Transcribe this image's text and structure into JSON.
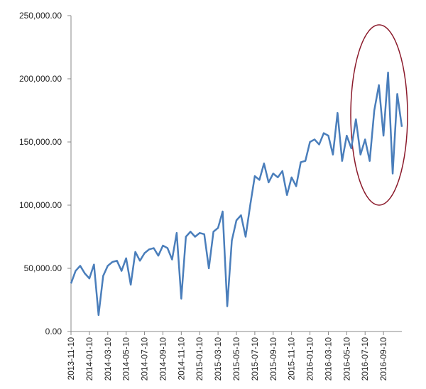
{
  "chart_data": {
    "type": "line",
    "categories": [
      "2013-11-10",
      null,
      null,
      null,
      "2014-01-10",
      null,
      null,
      null,
      "2014-03-10",
      null,
      null,
      null,
      "2014-05-10",
      null,
      null,
      null,
      "2014-07-10",
      null,
      null,
      null,
      "2014-09-10",
      null,
      null,
      null,
      "2014-11-10",
      null,
      null,
      null,
      "2015-01-10",
      null,
      null,
      null,
      "2015-03-10",
      null,
      null,
      null,
      "2015-05-10",
      null,
      null,
      null,
      "2015-07-10",
      null,
      null,
      null,
      "2015-09-10",
      null,
      null,
      null,
      "2015-11-10",
      null,
      null,
      null,
      "2016-01-10",
      null,
      null,
      null,
      "2016-03-10",
      null,
      null,
      null,
      "2016-05-10",
      null,
      null,
      null,
      "2016-07-10",
      null,
      null,
      null,
      "2016-09-10",
      null,
      null,
      null,
      null
    ],
    "series": [
      {
        "color": "#4a7ebb",
        "values": [
          38000,
          48000,
          52000,
          46000,
          42000,
          53000,
          13000,
          44000,
          52000,
          55000,
          56000,
          48000,
          58000,
          37000,
          63000,
          56000,
          62000,
          65000,
          66000,
          60000,
          68000,
          66000,
          57000,
          78000,
          26000,
          75000,
          79000,
          75000,
          78000,
          77000,
          50000,
          79000,
          82000,
          95000,
          20000,
          72000,
          88000,
          92000,
          75000,
          100000,
          123000,
          120000,
          133000,
          118000,
          125000,
          122000,
          127000,
          108000,
          122000,
          115000,
          134000,
          135000,
          150000,
          152000,
          148000,
          157000,
          155000,
          140000,
          173000,
          135000,
          155000,
          145000,
          168000,
          140000,
          152000,
          135000,
          175000,
          195000,
          155000,
          205000,
          125000,
          188000,
          162000
        ]
      }
    ],
    "ylim": [
      0,
      250000
    ],
    "yticks": [
      {
        "value": 0,
        "label": "0.00"
      },
      {
        "value": 50000,
        "label": "50,000.00"
      },
      {
        "value": 100000,
        "label": "100,000.00"
      },
      {
        "value": 150000,
        "label": "150,000.00"
      },
      {
        "value": 200000,
        "label": "200,000.00"
      },
      {
        "value": 250000,
        "label": "250,000.00"
      }
    ],
    "grid": false
  }
}
